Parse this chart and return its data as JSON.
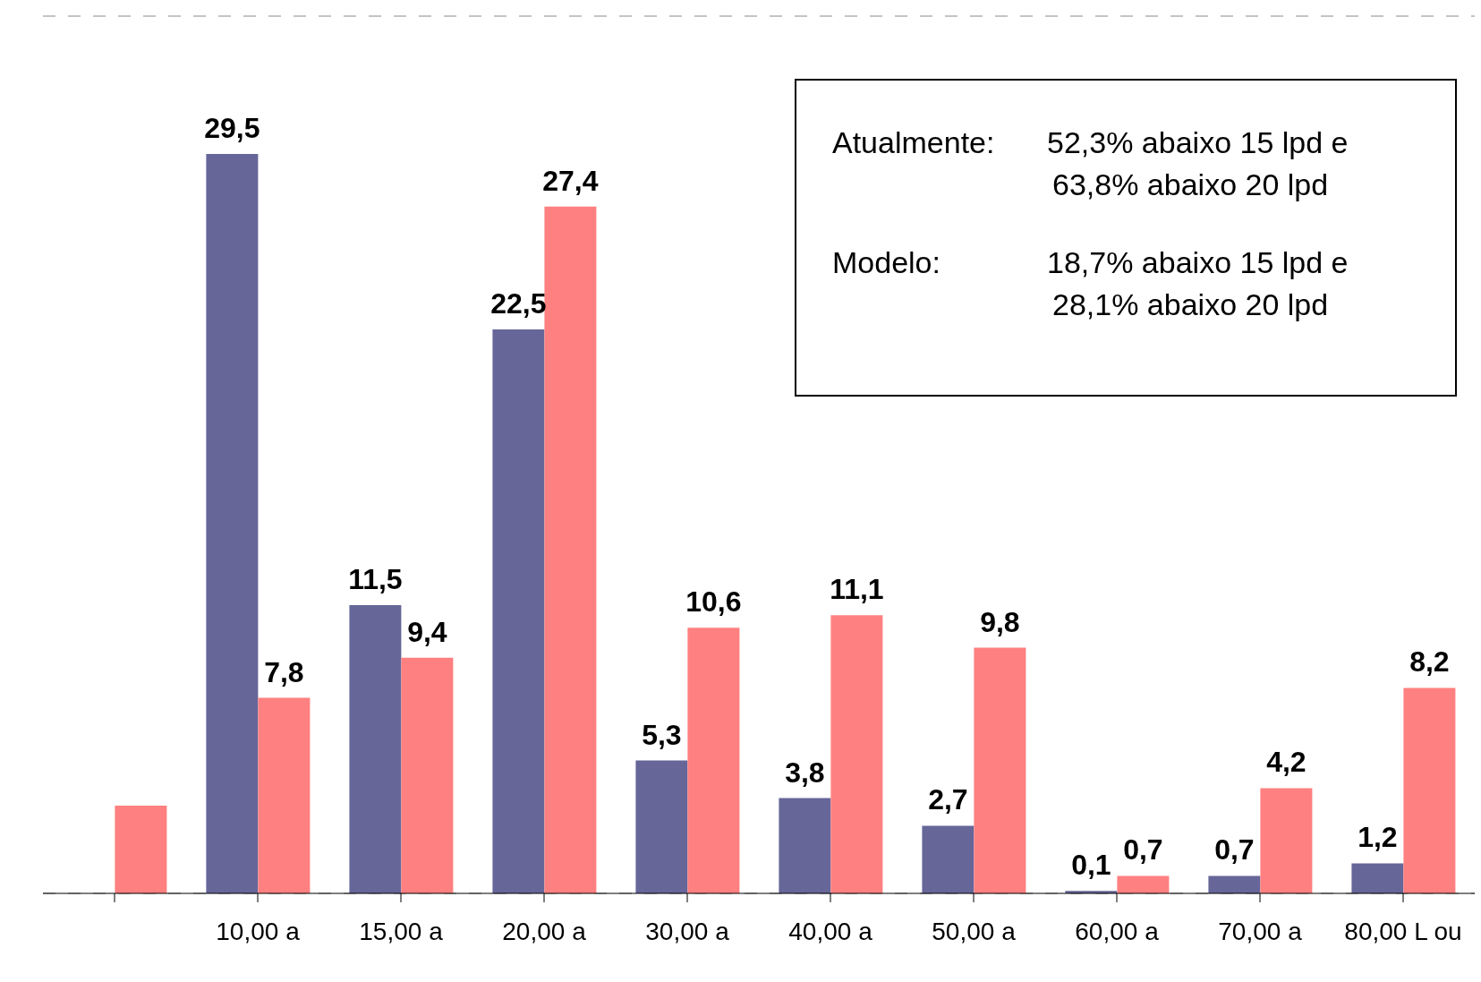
{
  "chart_data": {
    "type": "bar",
    "categories": [
      null,
      "10,00 a",
      "15,00 a",
      "20,00 a",
      "30,00 a",
      "40,00 a",
      "50,00 a",
      "60,00 a",
      "70,00 a",
      "80,00 L ou"
    ],
    "series": [
      {
        "color": "#666699",
        "values": [
          null,
          29.5,
          11.5,
          22.5,
          5.3,
          3.8,
          2.7,
          0.1,
          0.7,
          1.2
        ],
        "value_labels": [
          null,
          "29,5",
          "11,5",
          "22,5",
          "5,3",
          "3,8",
          "2,7",
          "0,1",
          "0,7",
          "1,2"
        ]
      },
      {
        "color": "#ff8080",
        "values": [
          3.5,
          7.8,
          9.4,
          27.4,
          10.6,
          11.1,
          9.8,
          0.7,
          4.2,
          8.2
        ],
        "value_labels": [
          null,
          "7,8",
          "9,4",
          "27,4",
          "10,6",
          "11,1",
          "9,8",
          "0,7",
          "4,2",
          "8,2"
        ]
      }
    ],
    "ylim": [
      0,
      35
    ],
    "tick_labels": "x",
    "grid": "y",
    "annotations": [
      "Atualmente:",
      "52,3% abaixo 15 lpd e",
      "63,8% abaixo 20 lpd",
      "Modelo:",
      "18,7% abaixo 15 lpd e",
      "28,1% abaixo 20 lpd"
    ]
  }
}
